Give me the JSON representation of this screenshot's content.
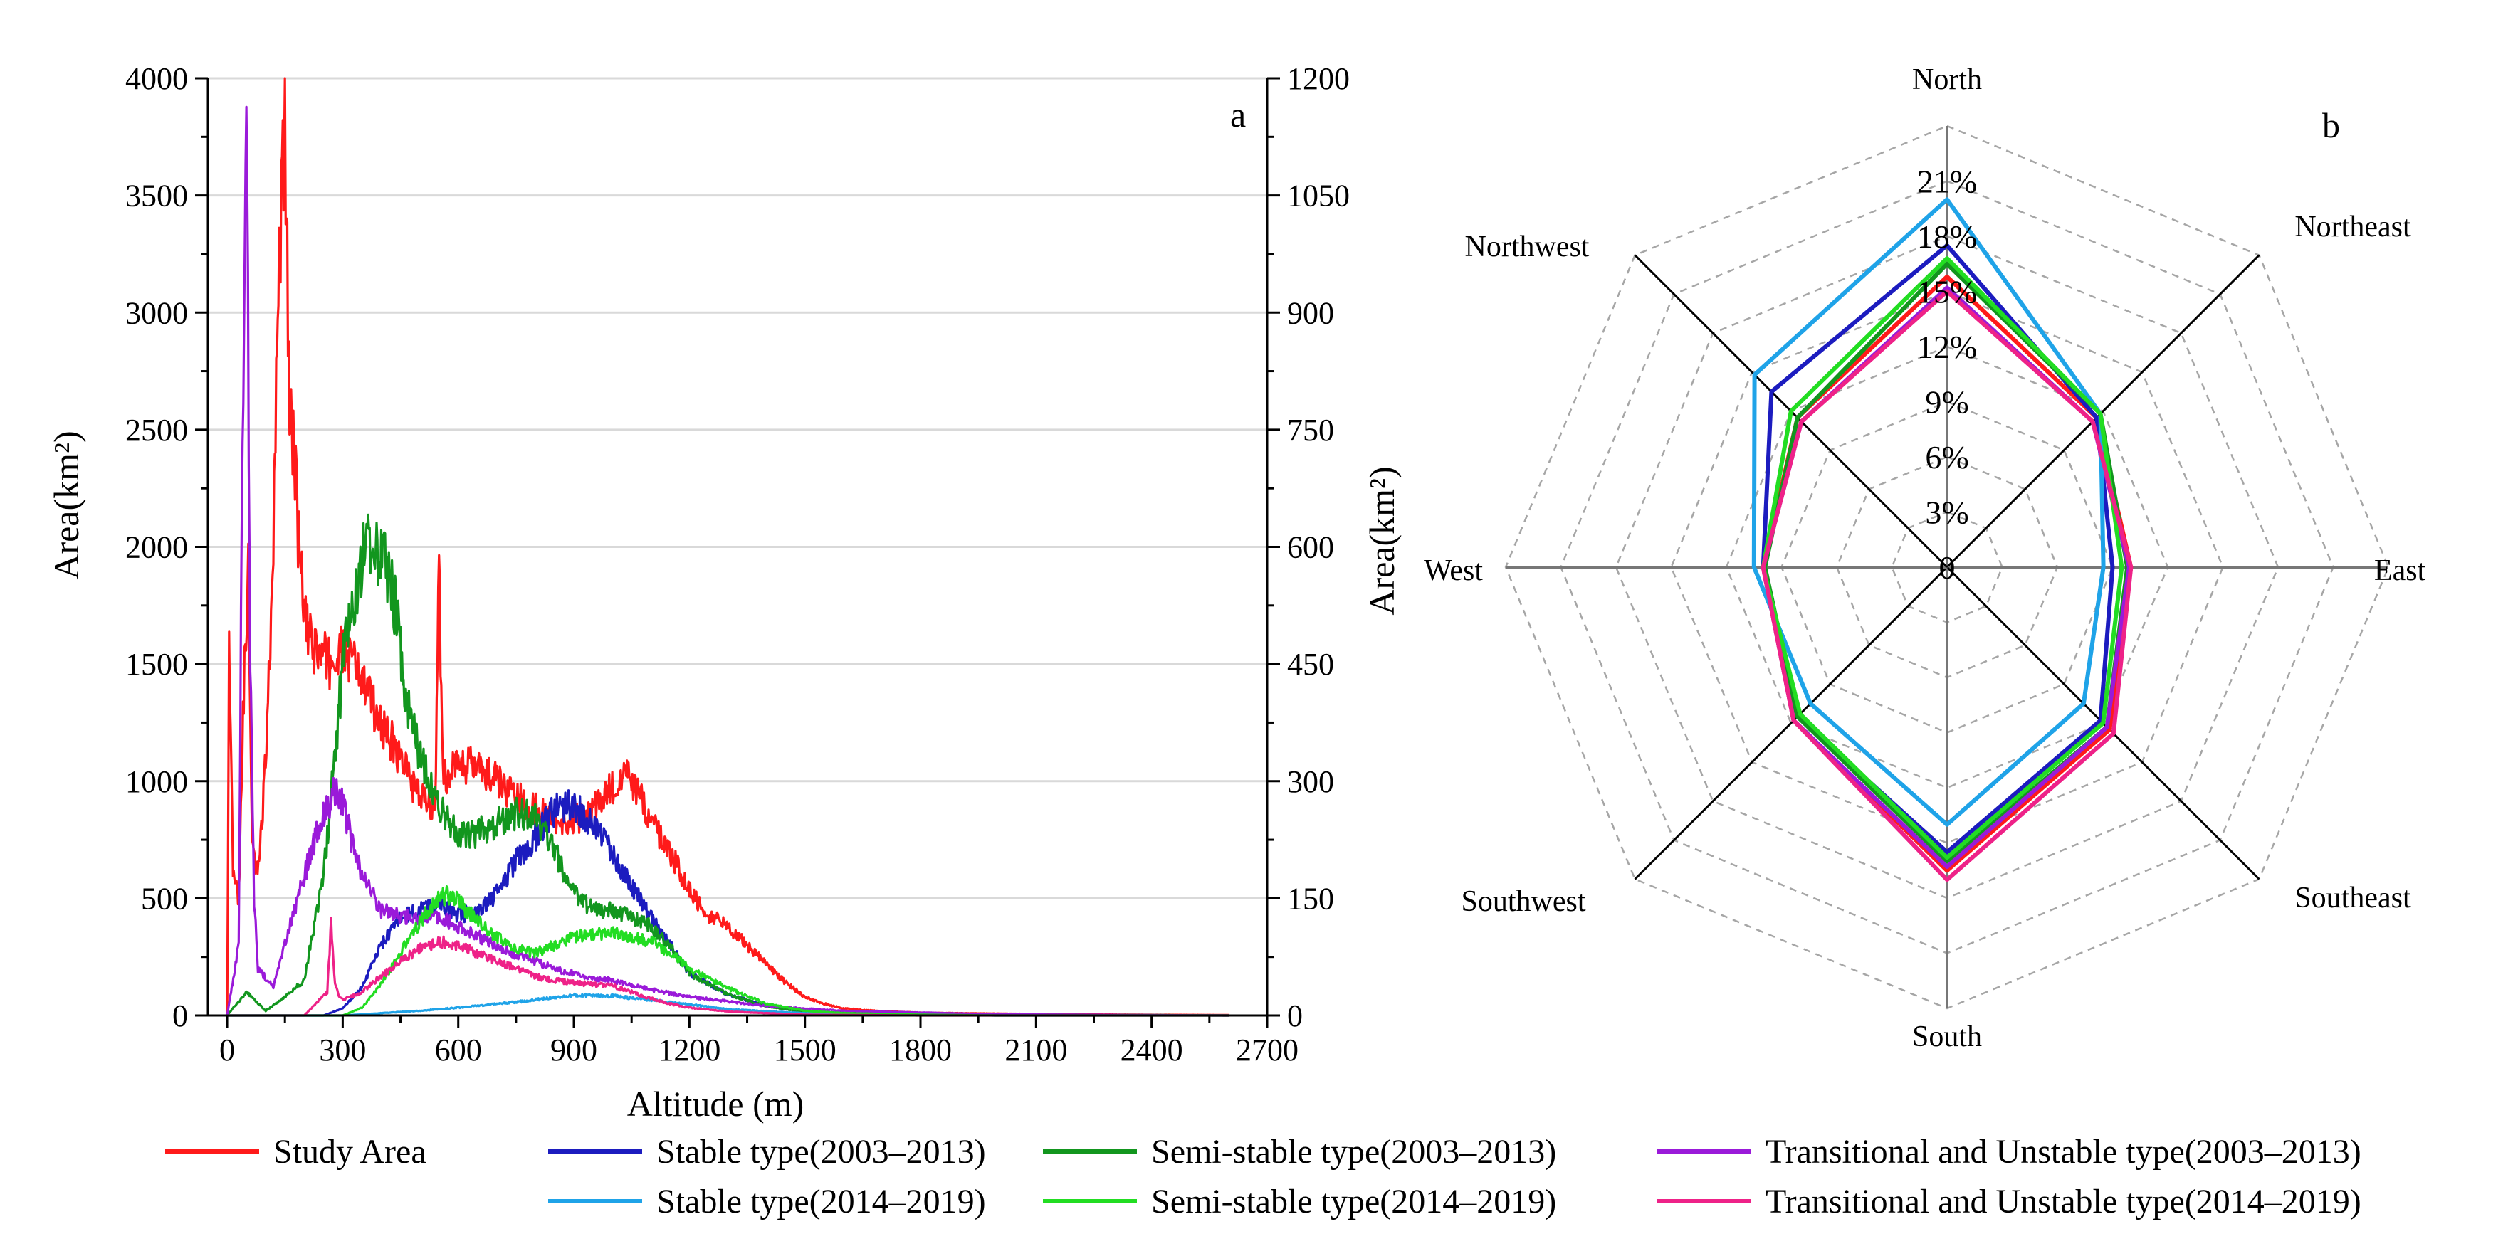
{
  "chart_data": [
    {
      "panel": "a",
      "type": "line",
      "xlabel": "Altitude (m)",
      "ylabel_left": "Area(km²)",
      "ylabel_right": "Area(km²)",
      "xlim": [
        -50,
        2700
      ],
      "ylim_left": [
        0,
        4000
      ],
      "ylim_right": [
        0,
        1200
      ],
      "x_ticks": [
        0,
        300,
        600,
        900,
        1200,
        1500,
        1800,
        2100,
        2400,
        2700
      ],
      "y_left_ticks": [
        0,
        500,
        1000,
        1500,
        2000,
        2500,
        3000,
        3500,
        4000
      ],
      "y_right_ticks": [
        0,
        150,
        300,
        450,
        600,
        750,
        900,
        1050,
        1200
      ],
      "grid": "horizontal",
      "series": [
        {
          "name": "Study Area",
          "axis": "left",
          "color": "#ff1a1a",
          "x": [
            0,
            5,
            15,
            30,
            45,
            55,
            65,
            75,
            85,
            100,
            120,
            135,
            150,
            160,
            170,
            190,
            210,
            250,
            280,
            300,
            330,
            370,
            400,
            450,
            500,
            540,
            550,
            560,
            600,
            650,
            700,
            750,
            800,
            850,
            900,
            950,
            1000,
            1040,
            1080,
            1100,
            1150,
            1200,
            1250,
            1300,
            1350,
            1400,
            1450,
            1500,
            1550,
            1600,
            1700,
            1800,
            2000,
            2200,
            2400,
            2600
          ],
          "y": [
            0,
            1650,
            600,
            500,
            1500,
            1900,
            800,
            620,
            700,
            1100,
            2000,
            3200,
            3850,
            2700,
            2500,
            1900,
            1600,
            1520,
            1500,
            1550,
            1500,
            1350,
            1250,
            1100,
            920,
            900,
            1950,
            1000,
            1080,
            1050,
            1000,
            930,
            880,
            830,
            830,
            880,
            970,
            1030,
            900,
            820,
            700,
            530,
            430,
            380,
            300,
            220,
            140,
            80,
            50,
            30,
            18,
            12,
            8,
            5,
            3,
            2
          ]
        },
        {
          "name": "Stable type(2003–2013)",
          "axis": "left",
          "color": "#1c1cbf",
          "x": [
            0,
            250,
            300,
            350,
            400,
            450,
            500,
            550,
            600,
            650,
            700,
            750,
            800,
            850,
            900,
            950,
            1000,
            1050,
            1100,
            1150,
            1200,
            1300,
            1400,
            1500,
            1600,
            1800,
            2000,
            2300,
            2600
          ],
          "y": [
            0,
            0,
            30,
            120,
            300,
            420,
            450,
            480,
            430,
            440,
            520,
            660,
            760,
            880,
            900,
            820,
            700,
            550,
            420,
            300,
            180,
            90,
            40,
            18,
            10,
            5,
            3,
            1,
            0
          ]
        },
        {
          "name": "Semi-stable type(2003–2013)",
          "axis": "left",
          "color": "#12961e",
          "x": [
            0,
            50,
            100,
            150,
            200,
            250,
            280,
            300,
            330,
            350,
            370,
            380,
            400,
            420,
            440,
            460,
            500,
            550,
            600,
            650,
            700,
            750,
            800,
            850,
            900,
            950,
            1000,
            1050,
            1100,
            1150,
            1200,
            1300,
            1400,
            1500,
            1700,
            2000,
            2400,
            2600
          ],
          "y": [
            0,
            100,
            20,
            80,
            150,
            600,
            1100,
            1500,
            1800,
            1950,
            2000,
            2050,
            1950,
            1900,
            1700,
            1400,
            1100,
            900,
            760,
            780,
            820,
            860,
            850,
            700,
            520,
            450,
            450,
            420,
            380,
            300,
            180,
            90,
            40,
            15,
            8,
            4,
            2,
            0
          ]
        },
        {
          "name": "Transitional and Unstable type(2003–2013)",
          "axis": "left",
          "color": "#9a1ad9",
          "x": [
            0,
            30,
            40,
            50,
            60,
            70,
            80,
            120,
            150,
            200,
            250,
            280,
            300,
            330,
            350,
            400,
            450,
            500,
            550,
            600,
            650,
            700,
            750,
            800,
            850,
            900,
            950,
            1000,
            1100,
            1200,
            1300,
            1400,
            1600,
            2000,
            2600
          ],
          "y": [
            0,
            300,
            2500,
            4000,
            1500,
            500,
            200,
            120,
            300,
            600,
            870,
            950,
            900,
            700,
            600,
            450,
            420,
            420,
            420,
            380,
            340,
            300,
            260,
            230,
            200,
            180,
            160,
            150,
            110,
            80,
            60,
            40,
            20,
            5,
            0
          ]
        },
        {
          "name": "Stable type(2014–2019)",
          "axis": "right",
          "color": "#1fa3e8",
          "x": [
            0,
            300,
            400,
            500,
            600,
            700,
            800,
            900,
            1000,
            1100,
            1200,
            1300,
            1500,
            1700,
            2000,
            2600
          ],
          "y": [
            0,
            0,
            3,
            6,
            10,
            15,
            20,
            26,
            25,
            20,
            14,
            8,
            3,
            1,
            0,
            0
          ]
        },
        {
          "name": "Semi-stable type(2014–2019)",
          "axis": "right",
          "color": "#22dd22",
          "x": [
            0,
            300,
            350,
            400,
            450,
            500,
            550,
            580,
            600,
            650,
            700,
            750,
            800,
            850,
            900,
            950,
            1000,
            1050,
            1100,
            1150,
            1200,
            1300,
            1400,
            1500,
            1600,
            1800,
            2000,
            2300,
            2600
          ],
          "y": [
            0,
            0,
            10,
            40,
            80,
            120,
            150,
            155,
            145,
            120,
            100,
            85,
            80,
            90,
            100,
            105,
            105,
            100,
            95,
            80,
            60,
            35,
            15,
            6,
            3,
            1,
            0,
            0,
            0
          ]
        },
        {
          "name": "Transitional and Unstable type(2014–2019)",
          "axis": "right",
          "color": "#ee2288",
          "x": [
            0,
            200,
            240,
            260,
            270,
            280,
            290,
            300,
            350,
            400,
            450,
            500,
            550,
            600,
            650,
            700,
            750,
            800,
            850,
            900,
            950,
            1000,
            1050,
            1100,
            1150,
            1200,
            1300,
            1400,
            1500,
            1800,
            2600
          ],
          "y": [
            0,
            0,
            20,
            30,
            120,
            40,
            25,
            20,
            30,
            50,
            70,
            85,
            95,
            90,
            80,
            70,
            60,
            50,
            45,
            42,
            40,
            38,
            30,
            22,
            15,
            10,
            5,
            3,
            1,
            0,
            0
          ]
        }
      ]
    },
    {
      "panel": "b",
      "type": "radar",
      "directions": [
        "North",
        "Northeast",
        "East",
        "Southeast",
        "South",
        "Southwest",
        "West",
        "Northwest"
      ],
      "ring_labels": [
        "0",
        "3%",
        "6%",
        "9%",
        "12%",
        "15%",
        "18%",
        "21%"
      ],
      "rmax": 24,
      "series": [
        {
          "name": "Study Area",
          "color": "#ff1a1a",
          "values": [
            15.8,
            11.5,
            10.0,
            12.5,
            16.5,
            11.8,
            10.0,
            11.5
          ]
        },
        {
          "name": "Stable type(2003–2013)",
          "color": "#1c1cbf",
          "values": [
            17.5,
            11.5,
            9.0,
            11.8,
            15.5,
            11.5,
            10.0,
            13.5
          ]
        },
        {
          "name": "Semi-stable type(2003–2013)",
          "color": "#12961e",
          "values": [
            16.5,
            11.8,
            9.8,
            12.3,
            16.0,
            11.5,
            9.9,
            11.5
          ]
        },
        {
          "name": "Transitional and Unstable type(2003–2013)",
          "color": "#9a1ad9",
          "values": [
            15.2,
            11.2,
            9.9,
            12.3,
            16.3,
            11.8,
            10.0,
            11.2
          ]
        },
        {
          "name": "Stable type(2014–2019)",
          "color": "#1fa3e8",
          "values": [
            20.0,
            11.8,
            8.5,
            10.5,
            14.0,
            10.5,
            10.5,
            14.8
          ]
        },
        {
          "name": "Semi-stable type(2014–2019)",
          "color": "#22dd22",
          "values": [
            16.8,
            11.8,
            9.5,
            12.0,
            15.8,
            11.3,
            10.0,
            12.0
          ]
        },
        {
          "name": "Transitional and Unstable type(2014–2019)",
          "color": "#ee2288",
          "values": [
            15.0,
            11.2,
            10.0,
            12.8,
            17.0,
            11.8,
            10.0,
            11.2
          ]
        }
      ]
    }
  ],
  "panel_labels": {
    "a": "a",
    "b": "b"
  },
  "legend": [
    {
      "label": "Study Area",
      "color": "#ff1a1a"
    },
    {
      "label": "Stable type(2003–2013)",
      "color": "#1c1cbf"
    },
    {
      "label": "Semi-stable type(2003–2013)",
      "color": "#12961e"
    },
    {
      "label": "Transitional and Unstable type(2003–2013)",
      "color": "#9a1ad9"
    },
    {
      "label": "Stable type(2014–2019)",
      "color": "#1fa3e8"
    },
    {
      "label": "Semi-stable type(2014–2019)",
      "color": "#22dd22"
    },
    {
      "label": "Transitional and Unstable type(2014–2019)",
      "color": "#ee2288"
    }
  ]
}
